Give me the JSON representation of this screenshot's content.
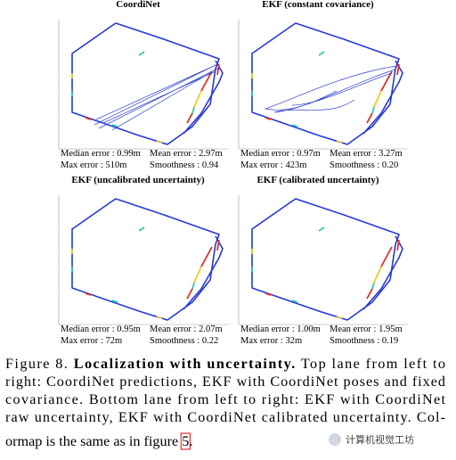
{
  "panels": [
    {
      "title": "CoordiNet",
      "median": "Median error : 0.99m",
      "mean": "Mean error : 2.97m",
      "max": "Max error : 510m",
      "smooth": "Smoothness : 0.94"
    },
    {
      "title": "EKF (constant covariance)",
      "median": "Median error : 0.97m",
      "mean": "Mean error : 3.27m",
      "max": "Max error : 423m",
      "smooth": "Smoothness : 0.20"
    },
    {
      "title": "EKF (uncalibrated uncertainty)",
      "median": "Median error : 0.95m",
      "mean": "Mean error : 2.07m",
      "max": "Max error : 72m",
      "smooth": "Smoothness : 0.22"
    },
    {
      "title": "EKF (calibrated uncertainty)",
      "median": "Median error : 1.00m",
      "mean": "Mean error : 1.95m",
      "max": "Max error : 32m",
      "smooth": "Smoothness : 0.19"
    }
  ],
  "caption": {
    "figure_label": "Figure 8.",
    "bold": "Localization with uncertainty.",
    "lines": [
      " Top lane from left to",
      "right: CoordiNet predictions, EKF with CoordiNet poses and fixed",
      "covariance. Bottom lane from left to right: EKF with CoordiNet",
      "raw uncertainty, EKF with CoordiNet calibrated uncertainty. Col-",
      "ormap is the same as in figure"
    ],
    "ref": "5",
    "end": "."
  },
  "watermark": "计算机视觉工坊"
}
